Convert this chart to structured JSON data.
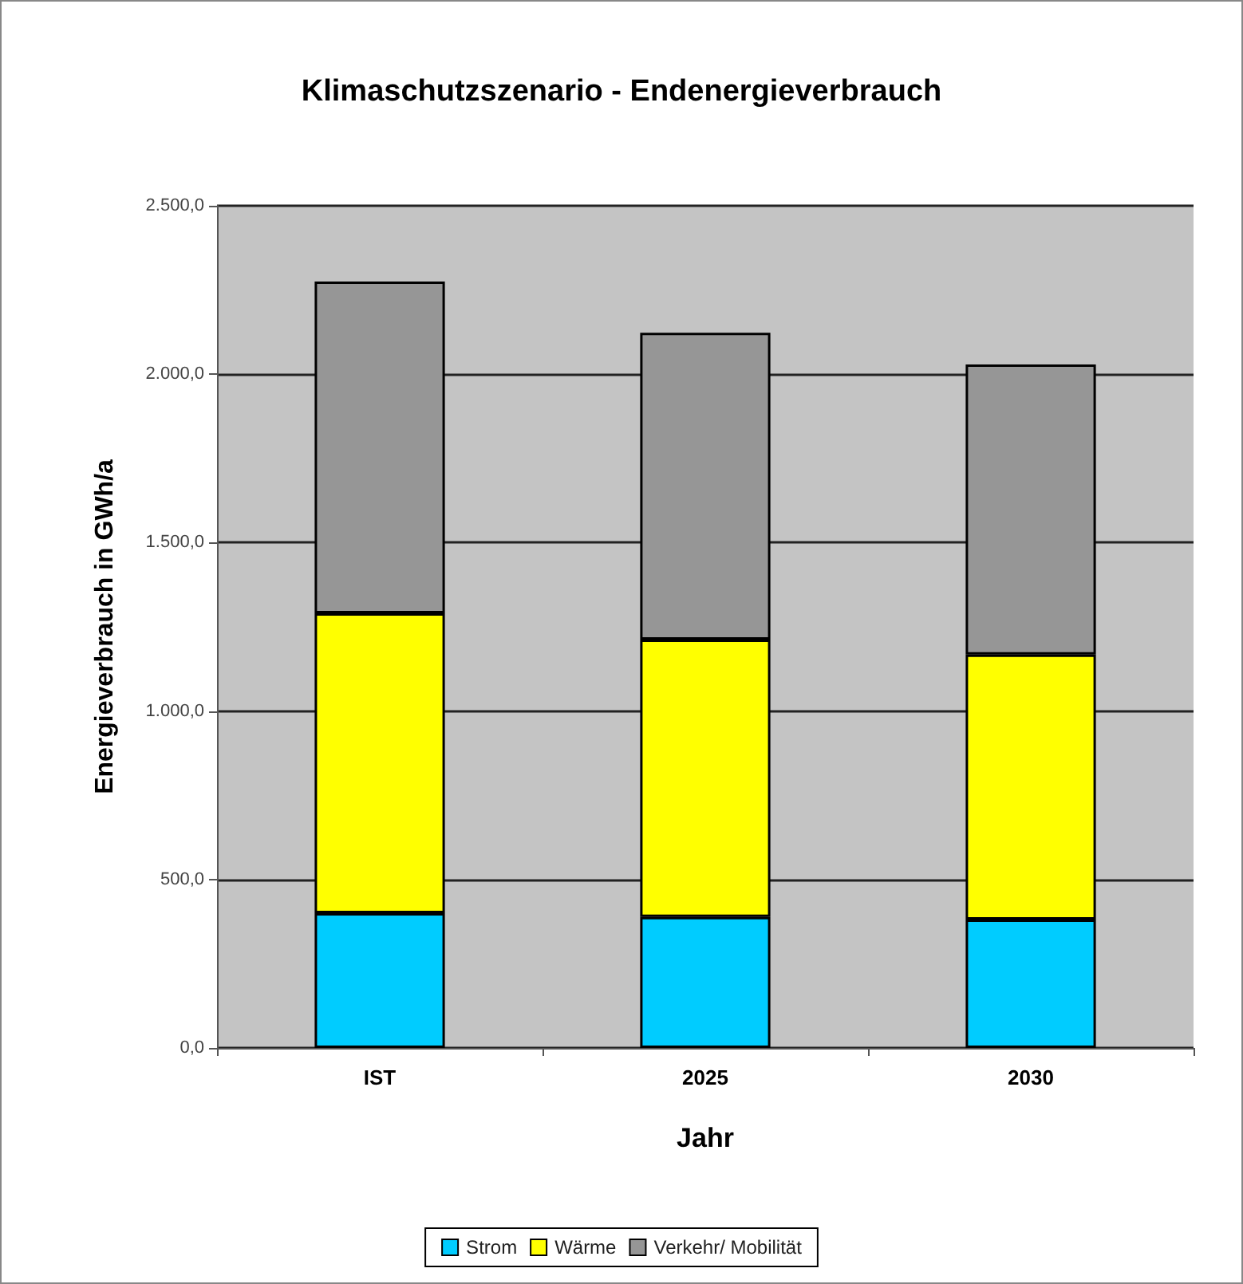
{
  "chart_data": {
    "type": "bar",
    "title": "Klimaschutzszenario - Endenergieverbrauch",
    "xlabel": "Jahr",
    "ylabel": "Energieverbrauch in GWh/a",
    "categories": [
      "IST",
      "2025",
      "2030"
    ],
    "stacked": true,
    "series": [
      {
        "name": "Strom",
        "color": "#00ccff",
        "values": [
          400,
          389,
          381
        ]
      },
      {
        "name": "Wärme",
        "color": "#ffff00",
        "values": [
          890,
          823,
          787
        ]
      },
      {
        "name": "Verkehr/ Mobilität",
        "color": "#969696",
        "values": [
          985,
          911,
          861
        ]
      }
    ],
    "ylim": [
      0,
      2500
    ],
    "yticks": [
      {
        "value": 0,
        "label": "0,0"
      },
      {
        "value": 500,
        "label": "500,0"
      },
      {
        "value": 1000,
        "label": "1.000,0"
      },
      {
        "value": 1500,
        "label": "1.500,0"
      },
      {
        "value": 2000,
        "label": "2.000,0"
      },
      {
        "value": 2500,
        "label": "2.500,0"
      }
    ],
    "grid": "y",
    "legend": "bottom"
  }
}
